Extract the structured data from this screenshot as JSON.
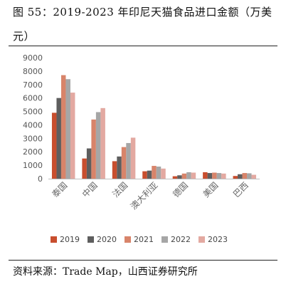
{
  "figure": {
    "title": "图 55：2019-2023 年印尼天猫食品进口金额（万美元）",
    "source": "资料来源：Trade Map，山西证券研究所"
  },
  "chart_data": {
    "type": "bar",
    "title": "",
    "xlabel": "",
    "ylabel": "",
    "ylim": [
      0,
      9000
    ],
    "yticks": [
      0,
      1000,
      2000,
      3000,
      4000,
      5000,
      6000,
      7000,
      8000,
      9000
    ],
    "grid": false,
    "legend_position": "bottom",
    "categories": [
      "泰国",
      "中国",
      "法国",
      "澳大利亚",
      "德国",
      "美国",
      "巴西"
    ],
    "series": [
      {
        "name": "2019",
        "color": "#c84e2e",
        "values": [
          4900,
          1500,
          1300,
          550,
          180,
          480,
          200
        ]
      },
      {
        "name": "2020",
        "color": "#5e5e5e",
        "values": [
          6000,
          2250,
          1650,
          600,
          250,
          420,
          330
        ]
      },
      {
        "name": "2021",
        "color": "#d8846a",
        "values": [
          7700,
          4400,
          2350,
          950,
          380,
          450,
          420
        ]
      },
      {
        "name": "2022",
        "color": "#a6a6a6",
        "values": [
          7400,
          4950,
          2650,
          900,
          480,
          420,
          400
        ]
      },
      {
        "name": "2023",
        "color": "#e3a9a1",
        "values": [
          6400,
          5250,
          3050,
          750,
          450,
          380,
          290
        ]
      }
    ]
  }
}
